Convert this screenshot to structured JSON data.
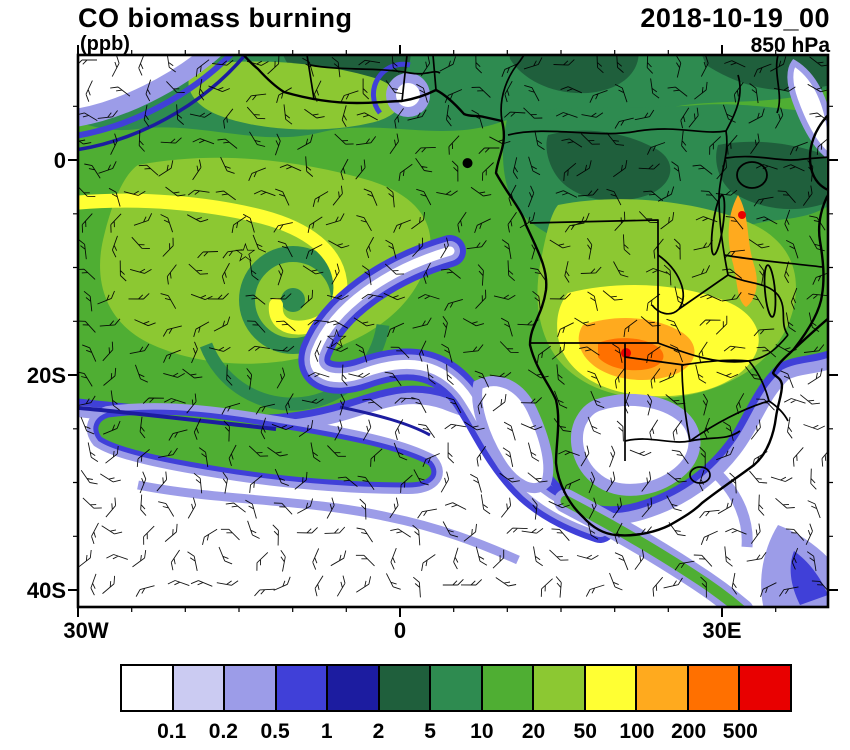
{
  "header": {
    "title": "CO biomass burning",
    "units_label": "(ppb)",
    "datetime": "2018-10-19_00",
    "level": "850 hPa"
  },
  "chart_data": {
    "type": "heatmap",
    "variable": "CO biomass burning",
    "units": "ppb",
    "valid_time": "2018-10-19_00",
    "pressure_level": "850 hPa",
    "projection": "lat-lon map of southern Africa and surrounding oceans",
    "x_axis": {
      "label_type": "longitude",
      "ticks": [
        "30W",
        "0",
        "30E"
      ],
      "range_deg": [
        -30,
        40
      ]
    },
    "y_axis": {
      "label_type": "latitude",
      "ticks": [
        "0",
        "20S",
        "40S"
      ],
      "range_deg": [
        -41.5,
        9.8
      ]
    },
    "colorbar": {
      "levels": [
        "0.1",
        "0.2",
        "0.5",
        "1",
        "2",
        "5",
        "10",
        "20",
        "50",
        "100",
        "200",
        "500"
      ],
      "colors": [
        "#FFFFFF",
        "#CBCBF2",
        "#9C9CE8",
        "#4040D8",
        "#1C1CA0",
        "#1F5F3C",
        "#2E8B50",
        "#4FAE33",
        "#8CC832",
        "#FFFF33",
        "#FFAA1E",
        "#FF7000",
        "#E80000"
      ]
    },
    "overlays": [
      "wind-barbs",
      "coastlines",
      "country-borders",
      "star-markers"
    ],
    "markers": [
      {
        "glyph": "☆",
        "approx_lon_deg": -14.4,
        "approx_lat_deg": -8.7
      },
      {
        "glyph": "☆",
        "approx_lon_deg": -5.9,
        "approx_lat_deg": -16.7
      },
      {
        "glyph": "●",
        "approx_lon_deg": 6.3,
        "approx_lat_deg": -0.3
      }
    ]
  }
}
